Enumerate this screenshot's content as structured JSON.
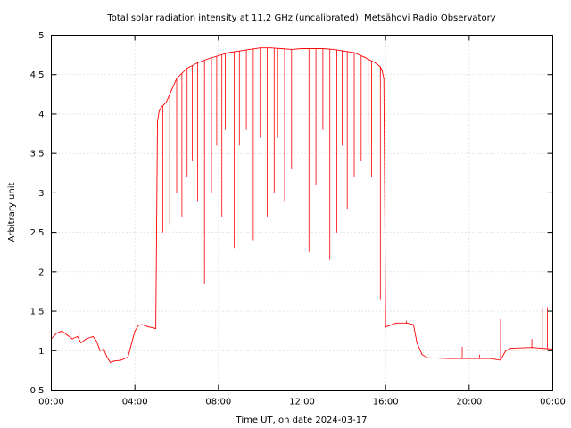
{
  "chart_data": {
    "type": "line",
    "title": "Total solar radiation intensity at 11.2 GHz (uncalibrated). Metsähovi Radio Observatory",
    "xlabel": "Time UT, on date 2024-03-17",
    "ylabel": "Arbitrary unit",
    "xlim": [
      "00:00",
      "24:00"
    ],
    "ylim": [
      0.5,
      5
    ],
    "x_ticks": [
      "00:00",
      "04:00",
      "08:00",
      "12:00",
      "16:00",
      "20:00",
      "00:00"
    ],
    "y_ticks": [
      "0.5",
      "1",
      "1.5",
      "2",
      "2.5",
      "3",
      "3.5",
      "4",
      "4.5",
      "5"
    ],
    "grid": true,
    "line_color": "#ff0000",
    "series": [
      {
        "x": [
          "00:00",
          "00:15",
          "00:30",
          "00:45",
          "01:00",
          "01:15",
          "01:25",
          "01:40",
          "02:00",
          "02:10",
          "02:20",
          "02:30",
          "02:40",
          "02:50",
          "03:00",
          "03:20",
          "03:40",
          "04:00",
          "04:10",
          "04:20",
          "04:40",
          "05:00",
          "05:05",
          "05:10",
          "05:15",
          "05:30",
          "05:45",
          "06:00",
          "06:30",
          "07:00",
          "07:30",
          "08:00",
          "08:30",
          "09:00",
          "09:30",
          "10:00",
          "10:30",
          "11:00",
          "11:30",
          "12:00",
          "12:30",
          "13:00",
          "13:30",
          "14:00",
          "14:30",
          "15:00",
          "15:30",
          "15:45",
          "15:50",
          "15:55",
          "16:00",
          "16:30",
          "17:00",
          "17:20",
          "17:30",
          "17:45",
          "18:00",
          "19:00",
          "20:00",
          "21:00",
          "21:30",
          "21:45",
          "22:00",
          "23:00",
          "24:00"
        ],
        "y": [
          1.15,
          1.22,
          1.25,
          1.2,
          1.15,
          1.18,
          1.1,
          1.15,
          1.18,
          1.12,
          1.0,
          1.02,
          0.92,
          0.85,
          0.87,
          0.88,
          0.92,
          1.25,
          1.32,
          1.33,
          1.3,
          1.28,
          3.9,
          4.05,
          4.08,
          4.15,
          4.3,
          4.45,
          4.58,
          4.65,
          4.7,
          4.74,
          4.78,
          4.8,
          4.82,
          4.84,
          4.84,
          4.83,
          4.82,
          4.83,
          4.83,
          4.83,
          4.82,
          4.8,
          4.78,
          4.72,
          4.65,
          4.6,
          4.55,
          4.45,
          1.3,
          1.35,
          1.35,
          1.33,
          1.1,
          0.95,
          0.91,
          0.9,
          0.9,
          0.9,
          0.88,
          1.0,
          1.03,
          1.04,
          1.02
        ]
      }
    ],
    "dips": {
      "x": [
        "05:20",
        "05:40",
        "06:00",
        "06:15",
        "06:30",
        "06:45",
        "07:00",
        "07:20",
        "07:40",
        "07:55",
        "08:10",
        "08:20",
        "08:45",
        "09:00",
        "09:20",
        "09:40",
        "10:00",
        "10:20",
        "10:40",
        "10:50",
        "11:10",
        "11:30",
        "12:00",
        "12:20",
        "12:40",
        "13:00",
        "13:20",
        "13:40",
        "13:55",
        "14:10",
        "14:30",
        "14:50",
        "15:10",
        "15:20",
        "15:35",
        "15:45"
      ],
      "y": [
        2.5,
        2.6,
        3.0,
        2.7,
        3.2,
        3.4,
        2.9,
        1.85,
        3.0,
        3.6,
        2.7,
        3.8,
        2.3,
        3.6,
        3.8,
        2.4,
        3.7,
        2.7,
        3.0,
        3.7,
        2.9,
        3.3,
        3.4,
        2.25,
        3.1,
        3.8,
        2.15,
        2.5,
        3.6,
        2.8,
        3.2,
        3.4,
        3.6,
        3.2,
        3.8,
        1.65
      ]
    },
    "spikes": {
      "x": [
        "01:20",
        "17:00",
        "19:40",
        "20:30",
        "21:30",
        "23:00",
        "23:30",
        "23:45"
      ],
      "y": [
        1.25,
        1.38,
        1.05,
        0.95,
        1.4,
        1.15,
        1.55,
        1.55
      ]
    }
  }
}
